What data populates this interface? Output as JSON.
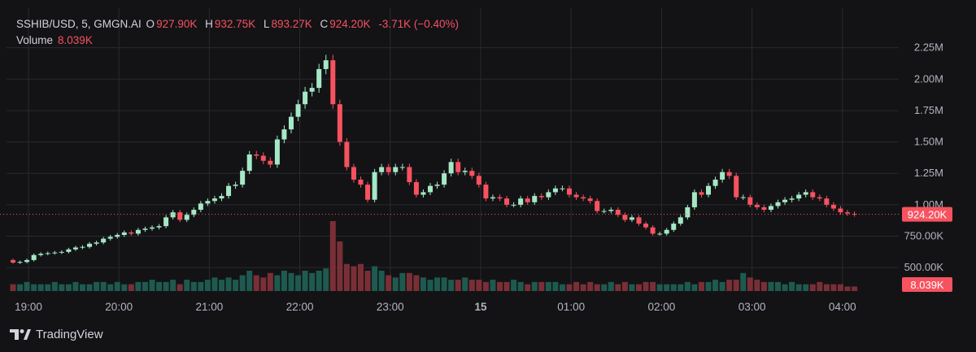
{
  "legend": {
    "symbol": "SSHIB/USD, 5, GMGN.AI",
    "o_label": "O",
    "o_value": "927.90K",
    "h_label": "H",
    "h_value": "932.75K",
    "l_label": "L",
    "l_value": "893.27K",
    "c_label": "C",
    "c_value": "924.20K",
    "change": "-3.71K (−0.40%)",
    "volume_label": "Volume",
    "volume_value": "8.039K"
  },
  "branding": {
    "name": "TradingView"
  },
  "colors": {
    "up": "#26a69a",
    "down": "#f7525f",
    "up_candle": "#26a69a",
    "bg": "#131316",
    "grid": "#2a2a2e",
    "text": "#d1d4dc"
  },
  "chart_data": {
    "type": "candlestick",
    "price_axis": {
      "ticks": [
        "2.25M",
        "2.00M",
        "1.75M",
        "1.50M",
        "1.25M",
        "1.00M",
        "750.00K",
        "500.00K"
      ],
      "tick_values": [
        2250000,
        2000000,
        1750000,
        1500000,
        1250000,
        1000000,
        750000,
        500000
      ],
      "range": [
        430000,
        2390000
      ]
    },
    "time_axis": {
      "ticks": [
        "19:00",
        "20:00",
        "21:00",
        "22:00",
        "23:00",
        "15",
        "01:00",
        "02:00",
        "03:00",
        "04:00"
      ]
    },
    "last_price_label": "924.20K",
    "last_price": 924200,
    "last_volume_label": "8.039K",
    "closes": [
      540000,
      545000,
      560000,
      600000,
      610000,
      615000,
      620000,
      625000,
      645000,
      660000,
      665000,
      690000,
      700000,
      730000,
      745000,
      760000,
      780000,
      770000,
      800000,
      810000,
      820000,
      830000,
      900000,
      940000,
      880000,
      920000,
      960000,
      1010000,
      1030000,
      1050000,
      1070000,
      1150000,
      1160000,
      1270000,
      1400000,
      1390000,
      1350000,
      1320000,
      1520000,
      1600000,
      1700000,
      1800000,
      1900000,
      1930000,
      2080000,
      2150000,
      1800000,
      1500000,
      1300000,
      1200000,
      1160000,
      1040000,
      1260000,
      1300000,
      1260000,
      1300000,
      1300000,
      1180000,
      1080000,
      1100000,
      1150000,
      1160000,
      1250000,
      1340000,
      1260000,
      1270000,
      1230000,
      1160000,
      1050000,
      1060000,
      1050000,
      1000000,
      1000000,
      1050000,
      1020000,
      1070000,
      1060000,
      1100000,
      1130000,
      1130000,
      1080000,
      1060000,
      1050000,
      1030000,
      950000,
      950000,
      960000,
      920000,
      880000,
      900000,
      850000,
      820000,
      770000,
      770000,
      800000,
      850000,
      900000,
      980000,
      1100000,
      1080000,
      1150000,
      1200000,
      1260000,
      1230000,
      1060000,
      1060000,
      1000000,
      980000,
      960000,
      990000,
      1020000,
      1040000,
      1050000,
      1080000,
      1100000,
      1060000,
      1050000,
      1000000,
      970000,
      940000,
      930000,
      924200
    ],
    "opens": [
      560000,
      540000,
      545000,
      560000,
      600000,
      610000,
      615000,
      620000,
      625000,
      645000,
      660000,
      665000,
      690000,
      700000,
      730000,
      745000,
      760000,
      780000,
      770000,
      800000,
      810000,
      820000,
      830000,
      900000,
      940000,
      880000,
      920000,
      960000,
      1010000,
      1030000,
      1050000,
      1070000,
      1150000,
      1160000,
      1270000,
      1400000,
      1390000,
      1350000,
      1320000,
      1520000,
      1600000,
      1700000,
      1800000,
      1900000,
      1930000,
      2080000,
      2150000,
      1800000,
      1500000,
      1300000,
      1200000,
      1160000,
      1040000,
      1260000,
      1300000,
      1260000,
      1300000,
      1300000,
      1180000,
      1080000,
      1100000,
      1150000,
      1160000,
      1250000,
      1340000,
      1260000,
      1270000,
      1230000,
      1160000,
      1050000,
      1060000,
      1050000,
      1000000,
      1000000,
      1050000,
      1020000,
      1070000,
      1060000,
      1100000,
      1130000,
      1130000,
      1080000,
      1060000,
      1050000,
      1030000,
      950000,
      950000,
      960000,
      920000,
      880000,
      900000,
      850000,
      820000,
      770000,
      770000,
      800000,
      850000,
      900000,
      980000,
      1100000,
      1080000,
      1150000,
      1200000,
      1260000,
      1230000,
      1060000,
      1060000,
      1000000,
      980000,
      960000,
      990000,
      1020000,
      1040000,
      1050000,
      1080000,
      1100000,
      1060000,
      1050000,
      1000000,
      970000,
      940000,
      927900
    ],
    "volumes": [
      3,
      3,
      4,
      3,
      3,
      3,
      4,
      3,
      3,
      4,
      3,
      3,
      4,
      4,
      3,
      4,
      3,
      3,
      4,
      4,
      5,
      4,
      4,
      5,
      3,
      5,
      4,
      4,
      5,
      6,
      5,
      6,
      5,
      7,
      9,
      7,
      6,
      8,
      7,
      9,
      8,
      7,
      9,
      8,
      9,
      10,
      31,
      22,
      12,
      11,
      12,
      9,
      11,
      9,
      7,
      6,
      8,
      8,
      7,
      6,
      5,
      6,
      6,
      5,
      5,
      6,
      5,
      5,
      4,
      5,
      4,
      4,
      5,
      4,
      3,
      4,
      4,
      4,
      4,
      3,
      3,
      4,
      3,
      4,
      3,
      3,
      4,
      3,
      4,
      3,
      3,
      4,
      4,
      3,
      3,
      3,
      3,
      4,
      3,
      4,
      4,
      5,
      4,
      5,
      5,
      8,
      6,
      5,
      4,
      4,
      4,
      3,
      4,
      3,
      3,
      3,
      4,
      3,
      3,
      3,
      2,
      2
    ],
    "volume_up_flags": []
  }
}
